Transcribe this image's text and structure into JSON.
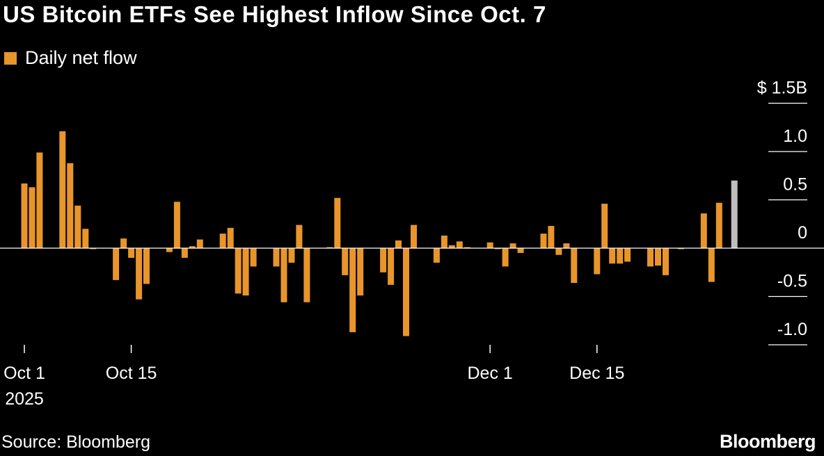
{
  "title": "US Bitcoin ETFs See Highest Inflow Since Oct. 7",
  "legend": {
    "label": "Daily net flow"
  },
  "source": "Source: Bloomberg",
  "brand": "Bloomberg",
  "colors": {
    "bar": "#E8952B",
    "highlight": "#BEBEBE",
    "background": "#000000",
    "text": "#FFFFFF"
  },
  "chart_data": {
    "type": "bar",
    "ylabel": "",
    "ylim": [
      -1.0,
      1.5
    ],
    "y_ticks": [
      {
        "value": 1.5,
        "label": "$ 1.5B"
      },
      {
        "value": 1.0,
        "label": "1.0"
      },
      {
        "value": 0.5,
        "label": "0.5"
      },
      {
        "value": 0,
        "label": "0"
      },
      {
        "value": -0.5,
        "label": "-0.5"
      },
      {
        "value": -1.0,
        "label": "-1.0"
      }
    ],
    "x_ticks": [
      {
        "date": "2025-10-01",
        "label": "Oct 1",
        "sublabel": "2025"
      },
      {
        "date": "2025-10-15",
        "label": "Oct 15",
        "sublabel": ""
      },
      {
        "date": "2025-12-01",
        "label": "Dec 1",
        "sublabel": ""
      },
      {
        "date": "2025-12-15",
        "label": "Dec 15",
        "sublabel": ""
      }
    ],
    "grid": false,
    "legend_position": "top-left",
    "series": [
      {
        "name": "Daily net flow",
        "points": [
          {
            "date": "2025-10-01",
            "value": 0.67
          },
          {
            "date": "2025-10-02",
            "value": 0.63
          },
          {
            "date": "2025-10-03",
            "value": 0.99
          },
          {
            "date": "2025-10-06",
            "value": 1.21
          },
          {
            "date": "2025-10-07",
            "value": 0.88
          },
          {
            "date": "2025-10-08",
            "value": 0.44
          },
          {
            "date": "2025-10-09",
            "value": 0.2
          },
          {
            "date": "2025-10-10",
            "value": -0.01
          },
          {
            "date": "2025-10-13",
            "value": -0.33
          },
          {
            "date": "2025-10-14",
            "value": 0.1
          },
          {
            "date": "2025-10-15",
            "value": -0.1
          },
          {
            "date": "2025-10-16",
            "value": -0.53
          },
          {
            "date": "2025-10-17",
            "value": -0.37
          },
          {
            "date": "2025-10-20",
            "value": -0.04
          },
          {
            "date": "2025-10-21",
            "value": 0.48
          },
          {
            "date": "2025-10-22",
            "value": -0.1
          },
          {
            "date": "2025-10-23",
            "value": 0.02
          },
          {
            "date": "2025-10-24",
            "value": 0.09
          },
          {
            "date": "2025-10-27",
            "value": 0.15
          },
          {
            "date": "2025-10-28",
            "value": 0.21
          },
          {
            "date": "2025-10-29",
            "value": -0.47
          },
          {
            "date": "2025-10-30",
            "value": -0.49
          },
          {
            "date": "2025-10-31",
            "value": -0.19
          },
          {
            "date": "2025-11-03",
            "value": -0.19
          },
          {
            "date": "2025-11-04",
            "value": -0.56
          },
          {
            "date": "2025-11-05",
            "value": -0.15
          },
          {
            "date": "2025-11-06",
            "value": 0.24
          },
          {
            "date": "2025-11-07",
            "value": -0.56
          },
          {
            "date": "2025-11-10",
            "value": 0.01
          },
          {
            "date": "2025-11-11",
            "value": 0.52
          },
          {
            "date": "2025-11-12",
            "value": -0.28
          },
          {
            "date": "2025-11-13",
            "value": -0.87
          },
          {
            "date": "2025-11-14",
            "value": -0.49
          },
          {
            "date": "2025-11-17",
            "value": -0.25
          },
          {
            "date": "2025-11-18",
            "value": -0.38
          },
          {
            "date": "2025-11-19",
            "value": 0.08
          },
          {
            "date": "2025-11-20",
            "value": -0.91
          },
          {
            "date": "2025-11-21",
            "value": 0.24
          },
          {
            "date": "2025-11-24",
            "value": -0.15
          },
          {
            "date": "2025-11-25",
            "value": 0.13
          },
          {
            "date": "2025-11-26",
            "value": 0.03
          },
          {
            "date": "2025-11-27",
            "value": 0.07
          },
          {
            "date": "2025-11-28",
            "value": 0.01
          },
          {
            "date": "2025-12-01",
            "value": 0.06
          },
          {
            "date": "2025-12-02",
            "value": -0.01
          },
          {
            "date": "2025-12-03",
            "value": -0.19
          },
          {
            "date": "2025-12-04",
            "value": 0.05
          },
          {
            "date": "2025-12-05",
            "value": -0.05
          },
          {
            "date": "2025-12-08",
            "value": 0.15
          },
          {
            "date": "2025-12-09",
            "value": 0.23
          },
          {
            "date": "2025-12-10",
            "value": -0.07
          },
          {
            "date": "2025-12-11",
            "value": 0.05
          },
          {
            "date": "2025-12-12",
            "value": -0.36
          },
          {
            "date": "2025-12-15",
            "value": -0.27
          },
          {
            "date": "2025-12-16",
            "value": 0.46
          },
          {
            "date": "2025-12-17",
            "value": -0.16
          },
          {
            "date": "2025-12-18",
            "value": -0.16
          },
          {
            "date": "2025-12-19",
            "value": -0.14
          },
          {
            "date": "2025-12-22",
            "value": -0.19
          },
          {
            "date": "2025-12-23",
            "value": -0.18
          },
          {
            "date": "2025-12-24",
            "value": -0.28
          },
          {
            "date": "2025-12-26",
            "value": -0.01
          },
          {
            "date": "2025-12-29",
            "value": 0.36
          },
          {
            "date": "2025-12-30",
            "value": -0.35
          },
          {
            "date": "2025-12-31",
            "value": 0.47
          },
          {
            "date": "2026-01-02",
            "value": 0.7,
            "highlight": true
          }
        ]
      }
    ]
  }
}
